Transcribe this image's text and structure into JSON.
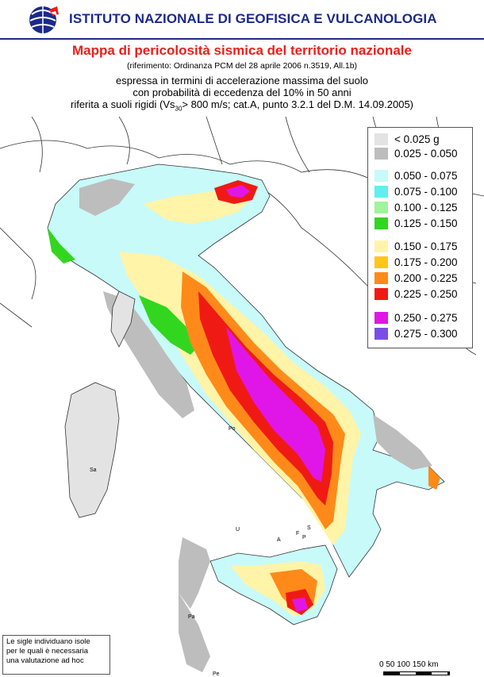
{
  "header": {
    "institute": "ISTITUTO NAZIONALE DI GEOFISICA E VULCANOLOGIA",
    "map_title": "Mappa di pericolosità sismica del territorio nazionale",
    "reference": "(riferimento: Ordinanza PCM del 28 aprile 2006 n.3519, All.1b)",
    "desc_line1": "espressa in termini di accelerazione massima del suolo",
    "desc_line2": "con probabilità di eccedenza del 10% in 50 anni",
    "desc_line3_pre": "riferita a suoli rigidi (Vs",
    "desc_line3_sub": "30",
    "desc_line3_post": "> 800 m/s; cat.A, punto 3.2.1 del D.M. 14.09.2005)"
  },
  "legend": {
    "items": [
      {
        "label": "< 0.025 g",
        "color": "#e3e3e3"
      },
      {
        "label": "0.025 - 0.050",
        "color": "#bdbdbd"
      },
      {
        "label": "0.050 - 0.075",
        "color": "#c8fafa"
      },
      {
        "label": "0.075 - 0.100",
        "color": "#5ef0f0"
      },
      {
        "label": "0.100 - 0.125",
        "color": "#9ef59a"
      },
      {
        "label": "0.125 - 0.150",
        "color": "#33d61e"
      },
      {
        "label": "0.150 - 0.175",
        "color": "#fff4a8"
      },
      {
        "label": "0.175 - 0.200",
        "color": "#ffc61a"
      },
      {
        "label": "0.200 - 0.225",
        "color": "#ff8a1a"
      },
      {
        "label": "0.225 - 0.250",
        "color": "#f01a14"
      },
      {
        "label": "0.250 - 0.275",
        "color": "#e016e8"
      },
      {
        "label": "0.275 - 0.300",
        "color": "#7a4ee6"
      }
    ]
  },
  "note": {
    "line1": "Le sigle individuano isole",
    "line2": "per le quali è necessaria",
    "line3": "una valutazione ad hoc"
  },
  "scale": {
    "labels": "0    50  100  150 km"
  },
  "islands": {
    "sa": "Sa",
    "po": "Po",
    "u": "U",
    "a": "A",
    "f": "F",
    "s": "S",
    "p": "P",
    "pa": "Pa",
    "pe": "Pe"
  }
}
